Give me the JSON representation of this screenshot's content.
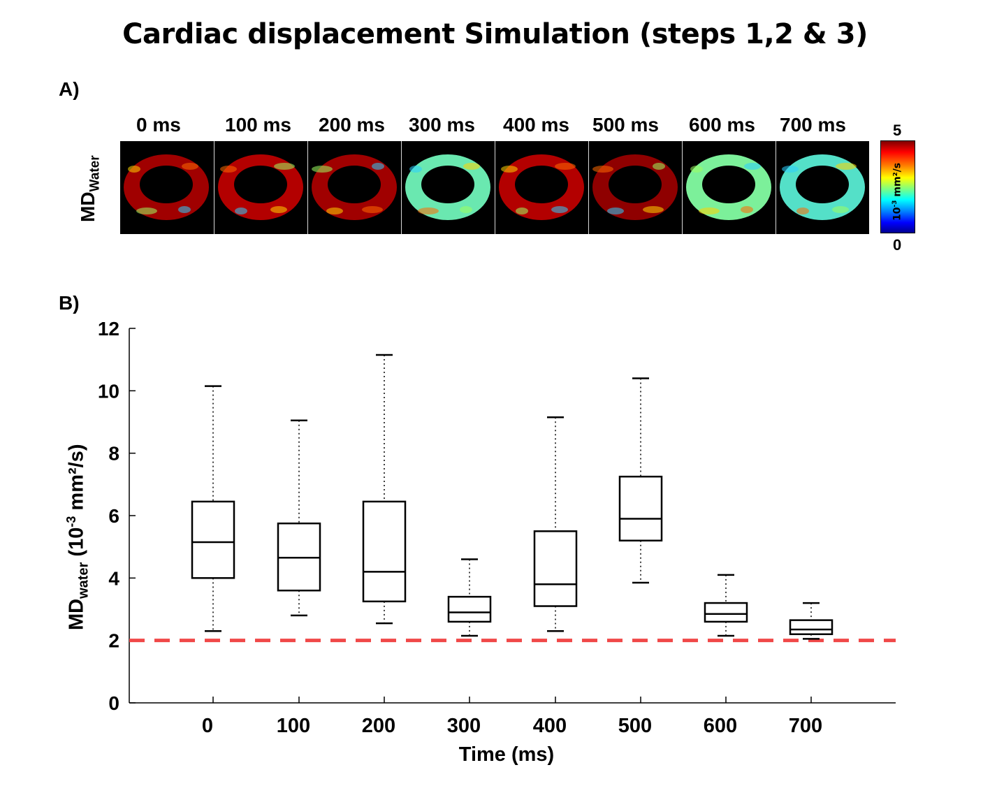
{
  "title": "Cardiac displacement Simulation (steps 1,2 & 3)",
  "panel_a": {
    "label": "A)",
    "row_label": "MD",
    "row_label_sub": "Water",
    "frames": [
      {
        "time": "0 ms",
        "hue": "#a00000"
      },
      {
        "time": "100 ms",
        "hue": "#b30000"
      },
      {
        "time": "200 ms",
        "hue": "#a00000"
      },
      {
        "time": "300 ms",
        "hue": "#6ae8b0"
      },
      {
        "time": "400 ms",
        "hue": "#b30000"
      },
      {
        "time": "500 ms",
        "hue": "#8f0000"
      },
      {
        "time": "600 ms",
        "hue": "#7cf09a"
      },
      {
        "time": "700 ms",
        "hue": "#54e0c8"
      }
    ],
    "colorbar": {
      "max": "5",
      "min": "0",
      "unit_base": "10",
      "unit_exp": "-3",
      "unit_rest": " mm²/s"
    }
  },
  "panel_b": {
    "label": "B)",
    "ylabel_main": "MD",
    "ylabel_sub": "water",
    "ylabel_mid": " (10",
    "ylabel_exp": "-3",
    "ylabel_end": " mm²/s)",
    "xlabel": "Time (ms)"
  },
  "chart_data": {
    "type": "box",
    "title": "",
    "xlabel": "Time (ms)",
    "ylabel": "MDwater (10-3 mm2/s)",
    "categories": [
      "0",
      "100",
      "200",
      "300",
      "400",
      "500",
      "600",
      "700"
    ],
    "ylim": [
      0,
      12
    ],
    "yticks": [
      0,
      2,
      4,
      6,
      8,
      10,
      12
    ],
    "boxes": [
      {
        "min": 2.3,
        "q1": 4.0,
        "median": 5.15,
        "q3": 6.45,
        "max": 10.15
      },
      {
        "min": 2.8,
        "q1": 3.6,
        "median": 4.65,
        "q3": 5.75,
        "max": 9.05
      },
      {
        "min": 2.55,
        "q1": 3.25,
        "median": 4.2,
        "q3": 6.45,
        "max": 11.15
      },
      {
        "min": 2.15,
        "q1": 2.6,
        "median": 2.9,
        "q3": 3.4,
        "max": 4.6
      },
      {
        "min": 2.3,
        "q1": 3.1,
        "median": 3.8,
        "q3": 5.5,
        "max": 9.15
      },
      {
        "min": 3.85,
        "q1": 5.2,
        "median": 5.9,
        "q3": 7.25,
        "max": 10.4
      },
      {
        "min": 2.15,
        "q1": 2.6,
        "median": 2.85,
        "q3": 3.2,
        "max": 4.1
      },
      {
        "min": 2.05,
        "q1": 2.2,
        "median": 2.35,
        "q3": 2.65,
        "max": 3.2
      }
    ],
    "reference_line": {
      "y": 2,
      "color": "#f04848",
      "style": "dashed"
    },
    "grid": false
  }
}
